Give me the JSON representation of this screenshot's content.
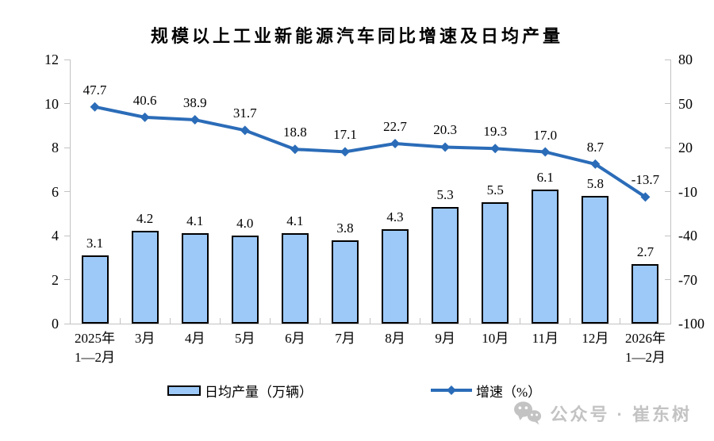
{
  "title": "规模以上工业新能源汽车同比增速及日均产量",
  "chart_data": {
    "type": "bar+line",
    "categories": [
      "2025年\n1—2月",
      "3月",
      "4月",
      "5月",
      "6月",
      "7月",
      "8月",
      "9月",
      "10月",
      "11月",
      "12月",
      "2026年\n1—2月"
    ],
    "series": [
      {
        "name": "日均产量（万辆）",
        "type": "bar",
        "axis": "left",
        "values": [
          3.1,
          4.2,
          4.1,
          4.0,
          4.1,
          3.8,
          4.3,
          5.3,
          5.5,
          6.1,
          5.8,
          2.7
        ]
      },
      {
        "name": "增速（%）",
        "type": "line",
        "axis": "right",
        "values": [
          47.7,
          40.6,
          38.9,
          31.7,
          18.8,
          17.1,
          22.7,
          20.3,
          19.3,
          17.0,
          8.7,
          -13.7
        ]
      }
    ],
    "left_axis": {
      "min": 0,
      "max": 12,
      "ticks": [
        0,
        2,
        4,
        6,
        8,
        10,
        12
      ]
    },
    "right_axis": {
      "min": -100,
      "max": 80,
      "ticks": [
        80,
        50,
        20,
        -10,
        -40,
        -70,
        -100
      ]
    },
    "grid": false,
    "legend_position": "bottom",
    "data_labels": true
  },
  "legend": {
    "bar_label": "日均产量（万辆）",
    "line_label": "增速（%）"
  },
  "footer": {
    "watermark": "公众号 · 崔东树",
    "icon": "wechat-icon"
  },
  "colors": {
    "bar_fill": "#9DC9F8",
    "bar_border": "#000000",
    "line": "#2B6CB8",
    "axis": "#C2C2C2",
    "label": "#000000",
    "watermark": "#C3C3C3",
    "background": "#FFFFFF"
  }
}
